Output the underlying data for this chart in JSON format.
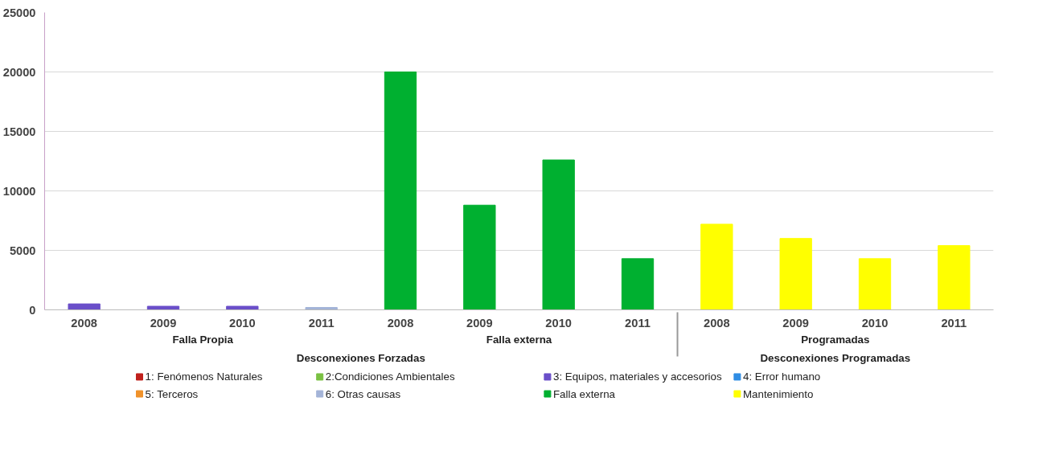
{
  "chart_data": {
    "type": "bar",
    "categories": [
      "2008",
      "2009",
      "2010",
      "2011",
      "2008",
      "2009",
      "2010",
      "2011",
      "2008",
      "2009",
      "2010",
      "2011"
    ],
    "series": [
      {
        "name": "1: Fenómenos Naturales",
        "color": "#c0201c",
        "values": [
          null,
          null,
          null,
          null,
          null,
          null,
          null,
          null,
          null,
          null,
          null,
          null
        ]
      },
      {
        "name": "2:Condiciones Ambientales",
        "color": "#7ac143",
        "values": [
          null,
          null,
          null,
          null,
          null,
          null,
          null,
          null,
          null,
          null,
          null,
          null
        ]
      },
      {
        "name": "3: Equipos, materiales y accesorios",
        "color": "#6a4fc9",
        "values": [
          500,
          300,
          300,
          null,
          null,
          null,
          null,
          null,
          null,
          null,
          null,
          null
        ]
      },
      {
        "name": "4: Error humano",
        "color": "#2f8de4",
        "values": [
          null,
          null,
          null,
          null,
          null,
          null,
          null,
          null,
          null,
          null,
          null,
          null
        ]
      },
      {
        "name": "5: Terceros",
        "color": "#f0922b",
        "values": [
          null,
          null,
          null,
          null,
          null,
          null,
          null,
          null,
          null,
          null,
          null,
          null
        ]
      },
      {
        "name": "6: Otras causas",
        "color": "#a4b4d8",
        "values": [
          null,
          null,
          null,
          200,
          null,
          null,
          null,
          null,
          null,
          null,
          null,
          null
        ]
      },
      {
        "name": "Falla externa",
        "color": "#00b030",
        "values": [
          null,
          null,
          null,
          null,
          20000,
          8800,
          12600,
          4300,
          null,
          null,
          null,
          null
        ]
      },
      {
        "name": "Mantenimiento",
        "color": "#ffff00",
        "values": [
          null,
          null,
          null,
          null,
          null,
          null,
          null,
          null,
          7200,
          6000,
          4300,
          5400
        ]
      }
    ],
    "annotations": [
      "Falla Propia",
      "Falla externa",
      "Programadas",
      "Desconexiones Forzadas",
      "Desconexiones Programadas"
    ],
    "ylim": [
      0,
      25000
    ],
    "yticks": [
      0,
      5000,
      10000,
      15000,
      20000,
      25000
    ],
    "grid": "y",
    "legend": "bottom"
  }
}
